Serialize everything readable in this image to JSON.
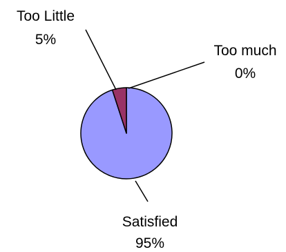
{
  "chart_data": {
    "type": "pie",
    "title": "",
    "slices": [
      {
        "label": "Satisfied",
        "value": 95,
        "value_label": "95%",
        "color": "#9999ff"
      },
      {
        "label": "Too Little",
        "value": 5,
        "value_label": "5%",
        "color": "#993366"
      },
      {
        "label": "Too much",
        "value": 0,
        "value_label": "0%",
        "color": "#ffffcc"
      }
    ],
    "legend": "none",
    "data_labels": "outside with leader lines"
  }
}
